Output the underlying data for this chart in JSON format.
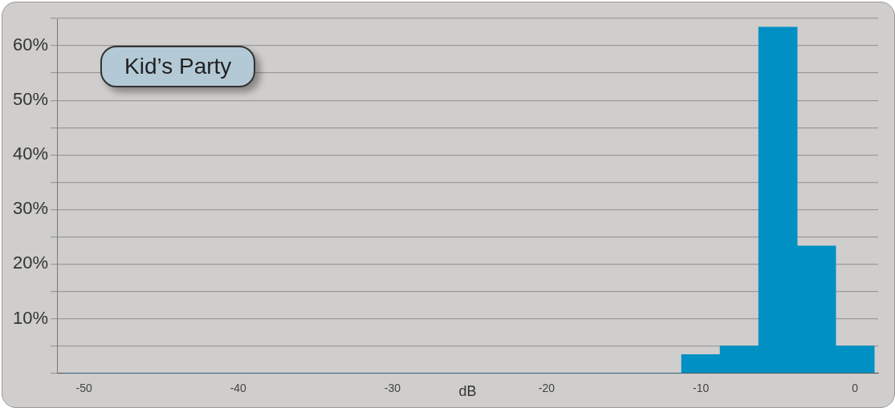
{
  "chart_data": {
    "type": "histogram",
    "title": "Kid’s Party",
    "xlabel": "dB",
    "bins": [
      -51.25,
      -48.75,
      -46.25,
      -43.75,
      -41.25,
      -38.75,
      -36.25,
      -33.75,
      -31.25,
      -28.75,
      -26.25,
      -23.75,
      -21.25,
      -18.75,
      -16.25,
      -13.75,
      -11.25,
      -8.75,
      -6.25,
      -3.75,
      -1.25,
      1.25
    ],
    "values": [
      0,
      0,
      0,
      0,
      0,
      0,
      0,
      0,
      0,
      0,
      0,
      0,
      0,
      0,
      0,
      0,
      3.4,
      5,
      63.4,
      23.3,
      5
    ],
    "color": "#0090c4",
    "xlim": [
      -51.75,
      1.5
    ],
    "xticks": [
      -50,
      -40,
      -30,
      -20,
      -10,
      0
    ],
    "ylim": [
      0,
      65
    ],
    "yticks": [
      {
        "value": 0,
        "label": null
      },
      {
        "value": 5,
        "label": null
      },
      {
        "value": 10,
        "label": "10%"
      },
      {
        "value": 15,
        "label": null
      },
      {
        "value": 20,
        "label": "20%"
      },
      {
        "value": 25,
        "label": null
      },
      {
        "value": 30,
        "label": "30%"
      },
      {
        "value": 35,
        "label": null
      },
      {
        "value": 40,
        "label": "40%"
      },
      {
        "value": 45,
        "label": null
      },
      {
        "value": 50,
        "label": "50%"
      },
      {
        "value": 55,
        "label": null
      },
      {
        "value": 60,
        "label": "60%"
      },
      {
        "value": 65,
        "label": null
      }
    ],
    "grid": "y"
  }
}
